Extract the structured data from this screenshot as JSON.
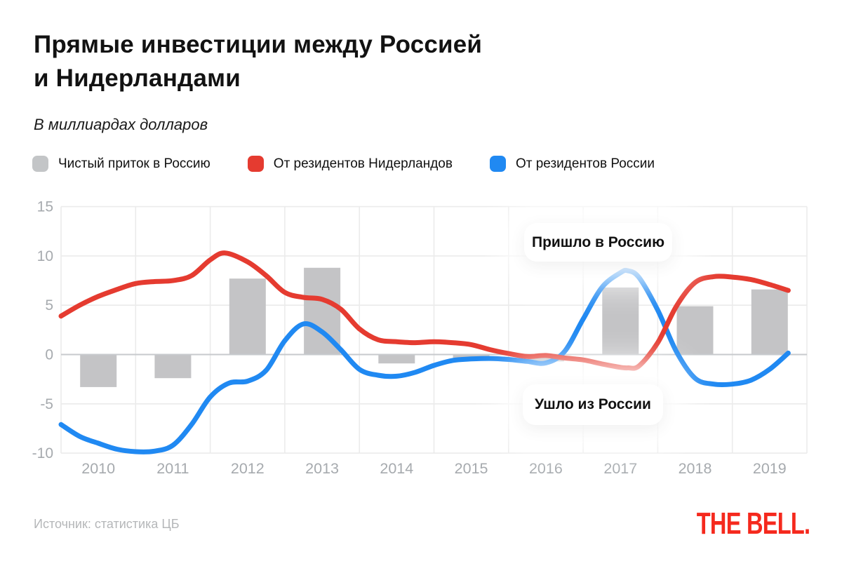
{
  "header": {
    "title_line1": "Прямые инвестиции между Россией",
    "title_line2": "и Нидерландами",
    "subtitle": "В миллиардах долларов"
  },
  "legend": [
    {
      "label": "Чистый приток в Россию",
      "color": "#c3c5c7"
    },
    {
      "label": "От резидентов Нидерландов",
      "color": "#e53b30"
    },
    {
      "label": "От резидентов России",
      "color": "#2089f2"
    }
  ],
  "footer": {
    "source": "Источник: статистика ЦБ",
    "logo": "THE BELL."
  },
  "chart_data": {
    "type": "bar+line",
    "title": "Прямые инвестиции между Россией и Нидерландами",
    "subtitle": "В миллиардах долларов",
    "unit": "billions of USD",
    "ylim": [
      -10,
      15
    ],
    "yticks": [
      15,
      10,
      5,
      0,
      -5,
      -10
    ],
    "x_range": [
      2009.5,
      2019.5
    ],
    "grid": true,
    "categories": [
      2010,
      2011,
      2012,
      2013,
      2014,
      2015,
      2016,
      2017,
      2018,
      2019
    ],
    "bar_series": {
      "name": "Чистый приток в Россию",
      "color": "#c4c4c6",
      "values": [
        -3.3,
        -2.4,
        7.7,
        8.8,
        -0.9,
        -0.4,
        -0.7,
        6.8,
        4.9,
        6.6
      ]
    },
    "line_series": [
      {
        "name": "От резидентов России",
        "color": "#2089f2",
        "points": [
          [
            2009.5,
            -7.1
          ],
          [
            2009.75,
            -8.3
          ],
          [
            2010.0,
            -9.0
          ],
          [
            2010.25,
            -9.6
          ],
          [
            2010.5,
            -9.85
          ],
          [
            2010.75,
            -9.8
          ],
          [
            2011.0,
            -9.2
          ],
          [
            2011.25,
            -7.1
          ],
          [
            2011.5,
            -4.3
          ],
          [
            2011.75,
            -2.9
          ],
          [
            2012.0,
            -2.7
          ],
          [
            2012.25,
            -1.6
          ],
          [
            2012.5,
            1.4
          ],
          [
            2012.75,
            3.1
          ],
          [
            2013.0,
            2.3
          ],
          [
            2013.25,
            0.5
          ],
          [
            2013.5,
            -1.5
          ],
          [
            2013.75,
            -2.1
          ],
          [
            2014.0,
            -2.2
          ],
          [
            2014.25,
            -1.8
          ],
          [
            2014.5,
            -1.1
          ],
          [
            2014.75,
            -0.6
          ],
          [
            2015.0,
            -0.45
          ],
          [
            2015.25,
            -0.4
          ],
          [
            2015.5,
            -0.5
          ],
          [
            2015.75,
            -0.7
          ],
          [
            2016.0,
            -0.85
          ],
          [
            2016.25,
            0.3
          ],
          [
            2016.5,
            3.6
          ],
          [
            2016.75,
            6.8
          ],
          [
            2017.0,
            8.3
          ],
          [
            2017.1,
            8.5
          ],
          [
            2017.25,
            7.8
          ],
          [
            2017.5,
            4.5
          ],
          [
            2017.75,
            0.3
          ],
          [
            2018.0,
            -2.4
          ],
          [
            2018.25,
            -3.0
          ],
          [
            2018.5,
            -3.0
          ],
          [
            2018.75,
            -2.6
          ],
          [
            2019.0,
            -1.5
          ],
          [
            2019.25,
            0.15
          ]
        ]
      },
      {
        "name": "От резидентов Нидерландов",
        "color": "#e53b30",
        "points": [
          [
            2009.5,
            3.9
          ],
          [
            2009.75,
            5.0
          ],
          [
            2010.0,
            5.9
          ],
          [
            2010.25,
            6.6
          ],
          [
            2010.5,
            7.2
          ],
          [
            2010.75,
            7.4
          ],
          [
            2011.0,
            7.5
          ],
          [
            2011.25,
            8.0
          ],
          [
            2011.5,
            9.6
          ],
          [
            2011.7,
            10.3
          ],
          [
            2012.0,
            9.4
          ],
          [
            2012.25,
            8.0
          ],
          [
            2012.5,
            6.3
          ],
          [
            2012.75,
            5.8
          ],
          [
            2013.0,
            5.6
          ],
          [
            2013.25,
            4.6
          ],
          [
            2013.5,
            2.6
          ],
          [
            2013.75,
            1.5
          ],
          [
            2014.0,
            1.3
          ],
          [
            2014.25,
            1.2
          ],
          [
            2014.5,
            1.3
          ],
          [
            2014.75,
            1.2
          ],
          [
            2015.0,
            1.0
          ],
          [
            2015.25,
            0.5
          ],
          [
            2015.5,
            0.1
          ],
          [
            2015.75,
            -0.2
          ],
          [
            2016.0,
            -0.1
          ],
          [
            2016.25,
            -0.35
          ],
          [
            2016.5,
            -0.55
          ],
          [
            2016.75,
            -0.95
          ],
          [
            2017.0,
            -1.3
          ],
          [
            2017.1,
            -1.35
          ],
          [
            2017.25,
            -1.15
          ],
          [
            2017.5,
            1.2
          ],
          [
            2017.75,
            4.9
          ],
          [
            2018.0,
            7.3
          ],
          [
            2018.25,
            7.9
          ],
          [
            2018.5,
            7.85
          ],
          [
            2018.75,
            7.6
          ],
          [
            2019.0,
            7.1
          ],
          [
            2019.25,
            6.5
          ]
        ]
      }
    ],
    "annotations": [
      {
        "label": "Пришло в Россию"
      },
      {
        "label": "Ушло из России"
      }
    ],
    "style": {
      "grid_color": "#ebebeb",
      "zero_line_color": "#c7cacd",
      "axis_label_color": "#a6aaae"
    }
  }
}
